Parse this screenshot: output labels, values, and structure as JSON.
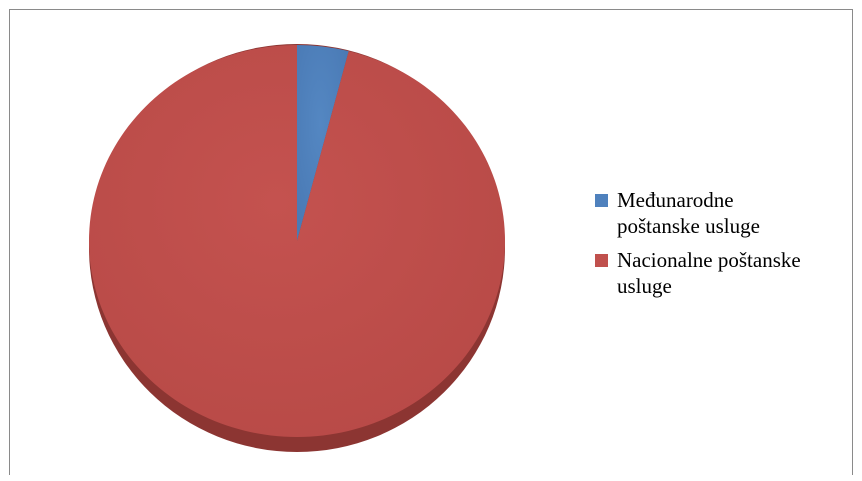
{
  "chart_data": {
    "type": "pie",
    "categories": [
      "Međunarodne poštanske usluge",
      "Nacionalne poštanske usluge"
    ],
    "values": [
      4,
      96
    ],
    "colors": [
      "#4f81bd",
      "#c0504d"
    ],
    "title": "",
    "legend_position": "right"
  },
  "legend": {
    "item_0_line_1": "Međunarodne",
    "item_0_line_2": "poštanske usluge",
    "item_1_line_1": "Nacionalne poštanske",
    "item_1_line_2": "usluge"
  }
}
